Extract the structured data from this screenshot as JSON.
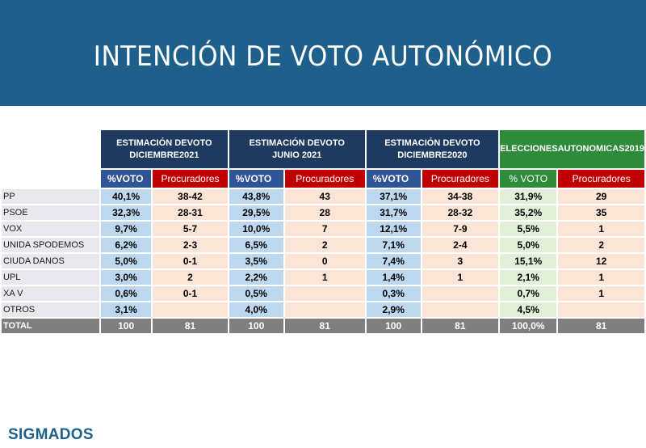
{
  "header": {
    "title": "INTENCIÓN DE VOTO AUTONÓMICO",
    "color": "#1f5f8b"
  },
  "groups": [
    {
      "line1": "ESTIMACIÓN DEVOTO",
      "line2": "DICIEMBRE2021"
    },
    {
      "line1": "ESTIMACIÓN DEVOTO",
      "line2": "JUNIO 2021"
    },
    {
      "line1": "ESTIMACIÓN DEVOTO",
      "line2": "DICIEMBRE2020"
    },
    {
      "line1": "ELECCIONESAUTONOMICAS2019",
      "line2": ""
    }
  ],
  "subheaders": {
    "voto": "%VOTO",
    "voto_2019": "% VOTO",
    "procuradores": "Procuradores"
  },
  "rows": [
    {
      "party": "PP",
      "v1": "40,1%",
      "p1": "38-42",
      "v2": "43,8%",
      "p2": "43",
      "v3": "37,1%",
      "p3": "34-38",
      "v4": "31,9%",
      "p4": "29"
    },
    {
      "party": "PSOE",
      "v1": "32,3%",
      "p1": "28-31",
      "v2": "29,5%",
      "p2": "28",
      "v3": "31,7%",
      "p3": "28-32",
      "v4": "35,2%",
      "p4": "35"
    },
    {
      "party": "VOX",
      "v1": "9,7%",
      "p1": "5-7",
      "v2": "10,0%",
      "p2": "7",
      "v3": "12,1%",
      "p3": "7-9",
      "v4": "5,5%",
      "p4": "1"
    },
    {
      "party": "UNIDA SPODEMOS",
      "v1": "6,2%",
      "p1": "2-3",
      "v2": "6,5%",
      "p2": "2",
      "v3": "7,1%",
      "p3": "2-4",
      "v4": "5,0%",
      "p4": "2"
    },
    {
      "party": "CIUDA DANOS",
      "v1": "5,0%",
      "p1": "0-1",
      "v2": "3,5%",
      "p2": "0",
      "v3": "7,4%",
      "p3": "3",
      "v4": "15,1%",
      "p4": "12"
    },
    {
      "party": "UPL",
      "v1": "3,0%",
      "p1": "2",
      "v2": "2,2%",
      "p2": "1",
      "v3": "1,4%",
      "p3": "1",
      "v4": "2,1%",
      "p4": "1"
    },
    {
      "party": "XA V",
      "v1": "0,6%",
      "p1": "0-1",
      "v2": "0,5%",
      "p2": "",
      "v3": "0,3%",
      "p3": "",
      "v4": "0,7%",
      "p4": "1"
    },
    {
      "party": "OTROS",
      "v1": "3,1%",
      "p1": "",
      "v2": "4,0%",
      "p2": "",
      "v3": "2,9%",
      "p3": "",
      "v4": "4,5%",
      "p4": ""
    }
  ],
  "total": {
    "party": "TOTAL",
    "v1": "100",
    "p1": "81",
    "v2": "100",
    "p2": "81",
    "v3": "100",
    "p3": "81",
    "v4": "100,0%",
    "p4": "81"
  },
  "footer": {
    "logo": "SIGMADOS"
  }
}
